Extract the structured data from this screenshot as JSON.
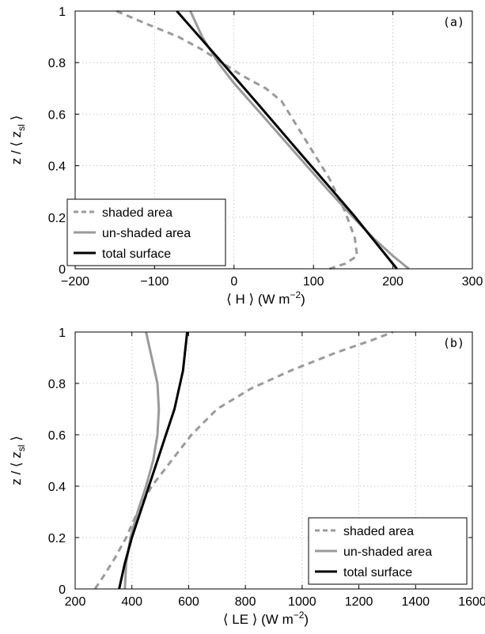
{
  "colors": {
    "shaded": "#9a9a9a",
    "unshaded": "#9a9a9a",
    "total": "#000000",
    "grid": "#c8c8c8"
  },
  "chart_data": [
    {
      "type": "line",
      "panel_label": "(a)",
      "xlabel": "⟨ H ⟩ (W m",
      "xlabel_sup": "−2",
      "xlabel_close": ")",
      "ylabel": "z / ⟨ z",
      "ylabel_sub": "sl",
      "ylabel_close": " ⟩",
      "xlim": [
        -200,
        300
      ],
      "ylim": [
        0,
        1
      ],
      "xticks": [
        -200,
        -100,
        0,
        100,
        200,
        300
      ],
      "xtick_labels": [
        "−200",
        "−100",
        "0",
        "100",
        "200",
        "300"
      ],
      "yticks": [
        0,
        0.2,
        0.4,
        0.6,
        0.8,
        1
      ],
      "ytick_labels": [
        "0",
        "0.2",
        "0.4",
        "0.6",
        "0.8",
        "1"
      ],
      "grid": true,
      "legend_position": "bottom-left",
      "series": [
        {
          "name": "shaded area",
          "style": "dashed",
          "color": "#9a9a9a",
          "x": [
            -148,
            -110,
            -70,
            -40,
            -15,
            10,
            40,
            60,
            80,
            100,
            120,
            140,
            152,
            155,
            140,
            120
          ],
          "y": [
            1.0,
            0.95,
            0.9,
            0.85,
            0.8,
            0.75,
            0.7,
            0.65,
            0.55,
            0.45,
            0.35,
            0.22,
            0.12,
            0.05,
            0.02,
            0.0
          ]
        },
        {
          "name": "un-shaded area",
          "style": "solid",
          "color": "#9a9a9a",
          "x": [
            -55,
            -40,
            -20,
            0,
            40,
            80,
            120,
            150,
            175,
            200,
            220
          ],
          "y": [
            1.0,
            0.9,
            0.8,
            0.72,
            0.58,
            0.44,
            0.3,
            0.2,
            0.12,
            0.05,
            0.0
          ]
        },
        {
          "name": "total surface",
          "style": "solid",
          "color": "#000000",
          "x": [
            -72,
            -15,
            30,
            80,
            125,
            150,
            205
          ],
          "y": [
            1.0,
            0.8,
            0.64,
            0.46,
            0.3,
            0.21,
            0.0
          ]
        }
      ]
    },
    {
      "type": "line",
      "panel_label": "(b)",
      "xlabel": "⟨ LE ⟩ (W m",
      "xlabel_sup": "−2",
      "xlabel_close": ")",
      "ylabel": "z / ⟨ z",
      "ylabel_sub": "sl",
      "ylabel_close": " ⟩",
      "xlim": [
        200,
        1600
      ],
      "ylim": [
        0,
        1
      ],
      "xticks": [
        200,
        400,
        600,
        800,
        1000,
        1200,
        1400,
        1600
      ],
      "xtick_labels": [
        "200",
        "400",
        "600",
        "800",
        "1000",
        "1200",
        "1400",
        "1600"
      ],
      "yticks": [
        0,
        0.2,
        0.4,
        0.6,
        0.8,
        1
      ],
      "ytick_labels": [
        "0",
        "0.2",
        "0.4",
        "0.6",
        "0.8",
        "1"
      ],
      "grid": true,
      "legend_position": "bottom-right",
      "series": [
        {
          "name": "shaded area",
          "style": "dashed",
          "color": "#9a9a9a",
          "x": [
            270,
            300,
            340,
            380,
            420,
            470,
            540,
            610,
            700,
            820,
            960,
            1120,
            1250,
            1320
          ],
          "y": [
            0.0,
            0.05,
            0.12,
            0.2,
            0.3,
            0.4,
            0.5,
            0.6,
            0.7,
            0.78,
            0.85,
            0.92,
            0.97,
            1.0
          ]
        },
        {
          "name": "un-shaded area",
          "style": "solid",
          "color": "#9a9a9a",
          "x": [
            375,
            380,
            395,
            420,
            450,
            475,
            490,
            495,
            490,
            470,
            450
          ],
          "y": [
            0.0,
            0.1,
            0.2,
            0.3,
            0.4,
            0.5,
            0.6,
            0.7,
            0.8,
            0.9,
            1.0
          ]
        },
        {
          "name": "total surface",
          "style": "solid",
          "color": "#000000",
          "x": [
            355,
            375,
            400,
            430,
            460,
            490,
            520,
            550,
            580,
            595
          ],
          "y": [
            0.0,
            0.1,
            0.2,
            0.3,
            0.4,
            0.5,
            0.6,
            0.7,
            0.85,
            1.0
          ]
        }
      ]
    }
  ]
}
